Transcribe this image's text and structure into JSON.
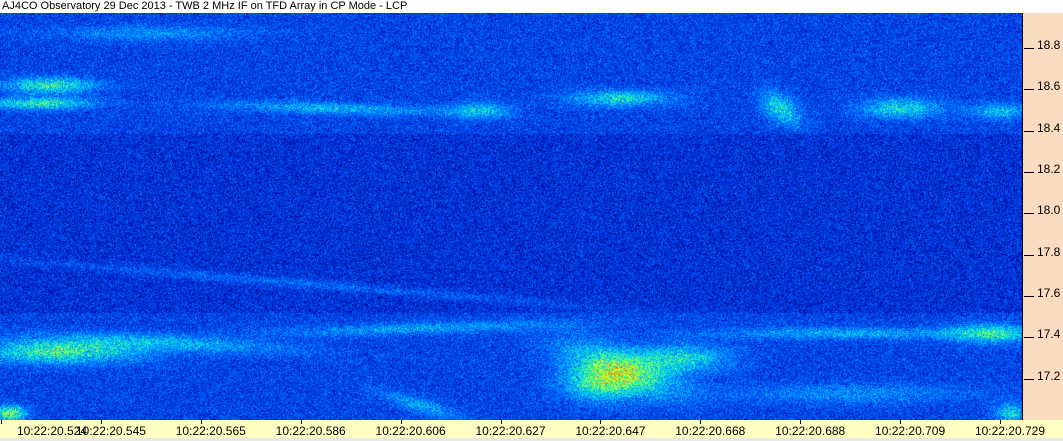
{
  "chart_data": {
    "type": "heatmap",
    "title": "AJ4CO Observatory 29 Dec 2013 - TWB 2 MHz IF on TFD Array in CP Mode - LCP",
    "xlabel": "",
    "ylabel": "",
    "x_tick_labels": [
      "10:22:20.524",
      "10:22:20.545",
      "10:22:20.565",
      "10:22:20.586",
      "10:22:20.606",
      "10:22:20.627",
      "10:22:20.647",
      "10:22:20.668",
      "10:22:20.688",
      "10:22:20.709",
      "10:22:20.729"
    ],
    "y_tick_labels": [
      "18.8",
      "18.6",
      "18.4",
      "18.2",
      "18.0",
      "17.8",
      "17.6",
      "17.4",
      "17.2"
    ],
    "y_ticks": [
      18.8,
      18.6,
      18.4,
      18.2,
      18.0,
      17.8,
      17.6,
      17.4,
      17.2
    ],
    "ylim": [
      17.0,
      18.97
    ],
    "y_axis_side": "right",
    "grid": false,
    "colormap": [
      "#000080",
      "#0030e0",
      "#0070ff",
      "#00d0ff",
      "#40ff80",
      "#ffff00",
      "#ff4000"
    ],
    "colors": {
      "y_axis_bg": "#fcdcc0",
      "x_axis_bg": "#ffffc4"
    }
  }
}
